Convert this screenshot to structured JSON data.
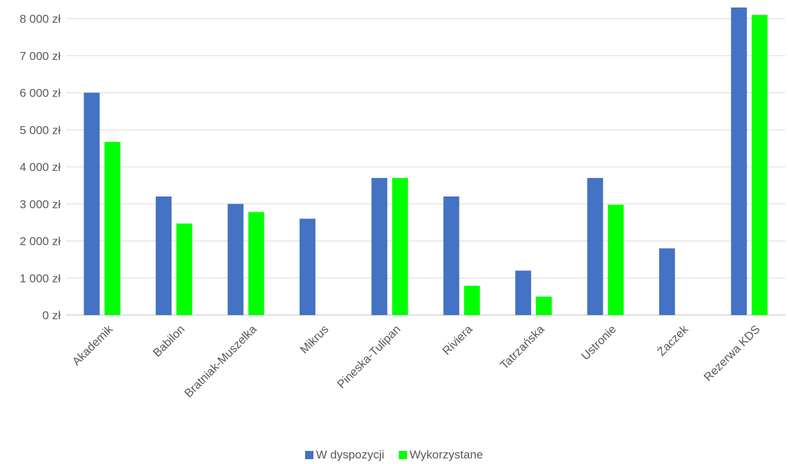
{
  "chart_data": {
    "type": "bar",
    "title": "",
    "xlabel": "",
    "ylabel": "",
    "categories": [
      "Akademik",
      "Babilon",
      "Bratniak-Muszelka",
      "Mikrus",
      "Pineska-Tulipan",
      "Riviera",
      "Tatrzańska",
      "Ustronie",
      "Żaczek",
      "Rezerwa KDS"
    ],
    "series": [
      {
        "name": "W dyspozycji",
        "color": "#4472C4",
        "values": [
          6000,
          3200,
          3000,
          2600,
          3700,
          3200,
          1200,
          3700,
          1800,
          8300
        ]
      },
      {
        "name": "Wykorzystane",
        "color": "#00FF00",
        "values": [
          4670,
          2470,
          2780,
          0,
          3700,
          790,
          500,
          2980,
          0,
          8100
        ]
      }
    ],
    "ylim": [
      0,
      8300
    ],
    "yticks": [
      0,
      1000,
      2000,
      3000,
      4000,
      5000,
      6000,
      7000,
      8000
    ],
    "ytick_labels": [
      "0 zł",
      "1 000 zł",
      "2 000 zł",
      "3 000 zł",
      "4 000 zł",
      "5 000 zł",
      "6 000 zł",
      "7 000 zł",
      "8 000 zł"
    ],
    "grid": true,
    "legend_position": "bottom"
  }
}
